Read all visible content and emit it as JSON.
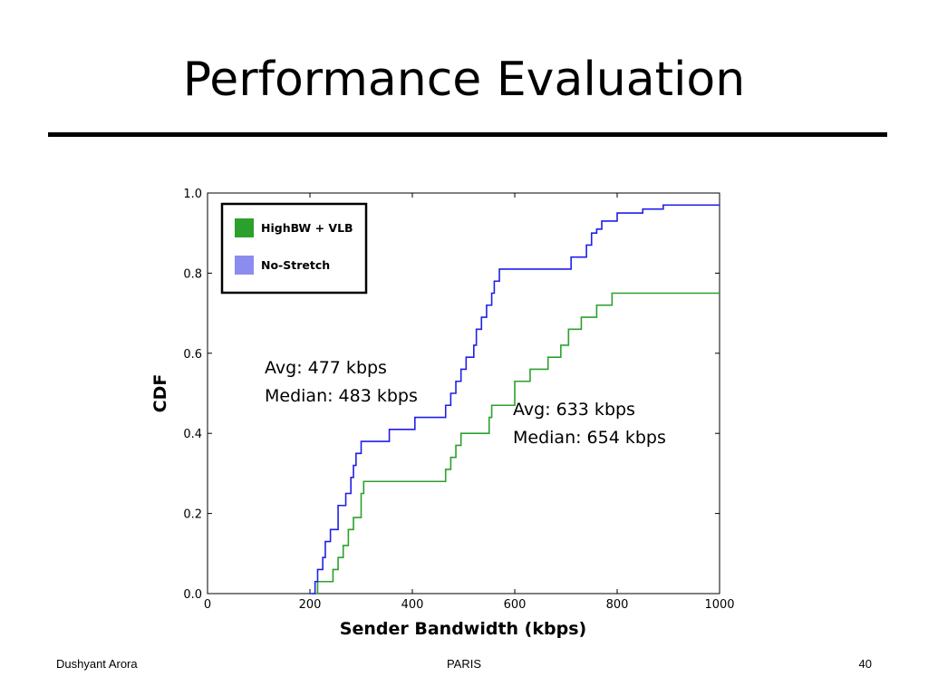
{
  "slide": {
    "title": "Performance Evaluation",
    "footer_left": "Dushyant Arora",
    "footer_center": "PARIS",
    "footer_right": "40"
  },
  "annotations": {
    "left": {
      "avg": "Avg: 477 kbps",
      "median": "Median: 483 kbps"
    },
    "right": {
      "avg": "Avg: 633 kbps",
      "median": "Median: 654 kbps"
    }
  },
  "colors": {
    "highbw": "#2ca02c",
    "nostretch": "#1f1fe8",
    "nostretch_legend": "#8c8cf0"
  },
  "chart_data": {
    "type": "line",
    "title": "",
    "xlabel": "Sender Bandwidth (kbps)",
    "ylabel": "CDF",
    "xlim": [
      0,
      1000
    ],
    "ylim": [
      0,
      1.0
    ],
    "xticks": [
      "0",
      "200",
      "400",
      "600",
      "800",
      "1000"
    ],
    "yticks": [
      "0.0",
      "0.2",
      "0.4",
      "0.6",
      "0.8",
      "1.0"
    ],
    "legend_position": "top-left",
    "grid": false,
    "series": [
      {
        "name": "HighBW + VLB",
        "step": true,
        "x": [
          205,
          215,
          245,
          255,
          265,
          275,
          285,
          300,
          305,
          465,
          475,
          485,
          495,
          550,
          555,
          600,
          630,
          665,
          690,
          705,
          730,
          760,
          790,
          825,
          850,
          1000
        ],
        "y": [
          0.0,
          0.03,
          0.06,
          0.09,
          0.12,
          0.16,
          0.19,
          0.25,
          0.28,
          0.31,
          0.34,
          0.37,
          0.4,
          0.44,
          0.47,
          0.53,
          0.56,
          0.59,
          0.62,
          0.66,
          0.69,
          0.72,
          0.75,
          0.75,
          0.75,
          0.75
        ]
      },
      {
        "name": "No-Stretch",
        "step": true,
        "x": [
          200,
          210,
          215,
          225,
          230,
          240,
          255,
          270,
          280,
          285,
          290,
          300,
          355,
          405,
          465,
          475,
          485,
          495,
          505,
          520,
          525,
          535,
          545,
          555,
          560,
          570,
          710,
          740,
          750,
          760,
          770,
          800,
          850,
          890,
          910,
          1000
        ],
        "y": [
          0.0,
          0.03,
          0.06,
          0.09,
          0.13,
          0.16,
          0.22,
          0.25,
          0.29,
          0.32,
          0.35,
          0.38,
          0.41,
          0.44,
          0.47,
          0.5,
          0.53,
          0.56,
          0.59,
          0.62,
          0.66,
          0.69,
          0.72,
          0.75,
          0.78,
          0.81,
          0.84,
          0.87,
          0.9,
          0.91,
          0.93,
          0.95,
          0.96,
          0.97,
          0.97,
          0.97
        ]
      }
    ]
  }
}
